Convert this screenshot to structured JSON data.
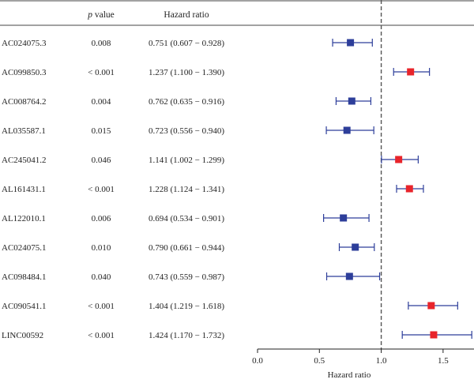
{
  "header": {
    "p_label_italic": "p",
    "p_label_rest": " value",
    "hr_label": "Hazard ratio"
  },
  "colors": {
    "risk": "#e8242b",
    "protective": "#2d3e9a",
    "ci_line": "#2d3e9a",
    "reference": "#555555"
  },
  "chart_data": {
    "type": "forest",
    "title": "",
    "xlabel": "Hazard ratio",
    "xlim": [
      0.0,
      1.75
    ],
    "xticks": [
      0.0,
      0.5,
      1.0,
      1.5
    ],
    "xtick_labels": [
      "0.0",
      "0.5",
      "1.0",
      "1.5"
    ],
    "reference_line": 1.0,
    "reference_style": "dashed",
    "rows": [
      {
        "gene": "AC024075.3",
        "p": "0.008",
        "hr_text": "0.751 (0.607 − 0.928)",
        "hr": 0.751,
        "lo": 0.607,
        "hi": 0.928,
        "group": "protective"
      },
      {
        "gene": "AC099850.3",
        "p": "< 0.001",
        "hr_text": "1.237 (1.100 − 1.390)",
        "hr": 1.237,
        "lo": 1.1,
        "hi": 1.39,
        "group": "risk"
      },
      {
        "gene": "AC008764.2",
        "p": "0.004",
        "hr_text": "0.762 (0.635 − 0.916)",
        "hr": 0.762,
        "lo": 0.635,
        "hi": 0.916,
        "group": "protective"
      },
      {
        "gene": "AL035587.1",
        "p": "0.015",
        "hr_text": "0.723 (0.556 − 0.940)",
        "hr": 0.723,
        "lo": 0.556,
        "hi": 0.94,
        "group": "protective"
      },
      {
        "gene": "AC245041.2",
        "p": "0.046",
        "hr_text": "1.141 (1.002 − 1.299)",
        "hr": 1.141,
        "lo": 1.002,
        "hi": 1.299,
        "group": "risk"
      },
      {
        "gene": "AL161431.1",
        "p": "< 0.001",
        "hr_text": "1.228 (1.124 − 1.341)",
        "hr": 1.228,
        "lo": 1.124,
        "hi": 1.341,
        "group": "risk"
      },
      {
        "gene": "AL122010.1",
        "p": "0.006",
        "hr_text": "0.694 (0.534 − 0.901)",
        "hr": 0.694,
        "lo": 0.534,
        "hi": 0.901,
        "group": "protective"
      },
      {
        "gene": "AC024075.1",
        "p": "0.010",
        "hr_text": "0.790 (0.661 − 0.944)",
        "hr": 0.79,
        "lo": 0.661,
        "hi": 0.944,
        "group": "protective"
      },
      {
        "gene": "AC098484.1",
        "p": "0.040",
        "hr_text": "0.743 (0.559 − 0.987)",
        "hr": 0.743,
        "lo": 0.559,
        "hi": 0.987,
        "group": "protective"
      },
      {
        "gene": "AC090541.1",
        "p": "< 0.001",
        "hr_text": "1.404 (1.219 − 1.618)",
        "hr": 1.404,
        "lo": 1.219,
        "hi": 1.618,
        "group": "risk"
      },
      {
        "gene": "LINC00592",
        "p": "< 0.001",
        "hr_text": "1.424 (1.170 − 1.732)",
        "hr": 1.424,
        "lo": 1.17,
        "hi": 1.732,
        "group": "risk"
      }
    ]
  }
}
